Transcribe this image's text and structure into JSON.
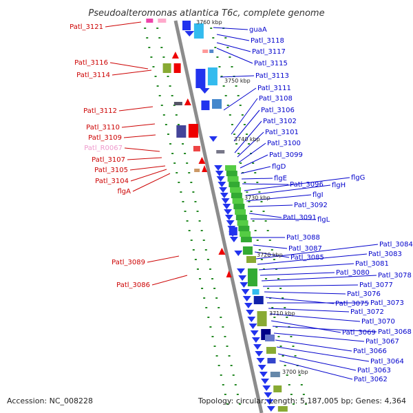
{
  "title": "Pseudoalteromonas atlantica T6c, complete genome",
  "accession": "Accession: NC_008228",
  "summary": "Topology: circular; Length: 5,187,005 bp; Genes: 4,364",
  "colors": {
    "forward_label": "#0000cc",
    "reverse_label": "#cc0000",
    "rna_label": "#ee99cc",
    "backbone": "#8c8c8c",
    "ticks": "#228822"
  },
  "kbp_marks": [
    "3760 kbp",
    "3750 kbp",
    "3740 kbp",
    "3730 kbp",
    "3720 kbp",
    "3710 kbp",
    "3700 kbp"
  ],
  "left_labels": [
    {
      "text": "Patl_3121",
      "kind": "reverse"
    },
    {
      "text": "Patl_3116",
      "kind": "reverse"
    },
    {
      "text": "Patl_3114",
      "kind": "reverse"
    },
    {
      "text": "Patl_3112",
      "kind": "reverse"
    },
    {
      "text": "Patl_3110",
      "kind": "reverse"
    },
    {
      "text": "Patl_3109",
      "kind": "reverse"
    },
    {
      "text": "Patl_R0067",
      "kind": "rna"
    },
    {
      "text": "Patl_3107",
      "kind": "reverse"
    },
    {
      "text": "Patl_3105",
      "kind": "reverse"
    },
    {
      "text": "Patl_3104",
      "kind": "reverse"
    },
    {
      "text": "flgA",
      "kind": "reverse"
    },
    {
      "text": "Patl_3089",
      "kind": "reverse"
    },
    {
      "text": "Patl_3086",
      "kind": "reverse"
    }
  ],
  "right_labels": [
    {
      "text": "guaA"
    },
    {
      "text": "Patl_3118"
    },
    {
      "text": "Patl_3117"
    },
    {
      "text": "Patl_3115"
    },
    {
      "text": "Patl_3113"
    },
    {
      "text": "Patl_3111"
    },
    {
      "text": "Patl_3108"
    },
    {
      "text": "Patl_3106"
    },
    {
      "text": "Patl_3102"
    },
    {
      "text": "Patl_3101"
    },
    {
      "text": "Patl_3100"
    },
    {
      "text": "Patl_3099"
    },
    {
      "text": "flgD"
    },
    {
      "text": "flgE"
    },
    {
      "text": "Patl_3096"
    },
    {
      "text": "flgG"
    },
    {
      "text": "flgH"
    },
    {
      "text": "flgI"
    },
    {
      "text": "Patl_3092"
    },
    {
      "text": "Patl_3091"
    },
    {
      "text": "flgL"
    },
    {
      "text": "Patl_3088"
    },
    {
      "text": "Patl_3087"
    },
    {
      "text": "Patl_3085"
    },
    {
      "text": "Patl_3084"
    },
    {
      "text": "Patl_3083"
    },
    {
      "text": "Patl_3081"
    },
    {
      "text": "Patl_3080"
    },
    {
      "text": "Patl_3078"
    },
    {
      "text": "Patl_3077"
    },
    {
      "text": "Patl_3076"
    },
    {
      "text": "Patl_3075"
    },
    {
      "text": "Patl_3073"
    },
    {
      "text": "Patl_3072"
    },
    {
      "text": "Patl_3070"
    },
    {
      "text": "Patl_3069"
    },
    {
      "text": "Patl_3068"
    },
    {
      "text": "Patl_3067"
    },
    {
      "text": "Patl_3066"
    },
    {
      "text": "Patl_3064"
    },
    {
      "text": "Patl_3063"
    },
    {
      "text": "Patl_3062"
    }
  ]
}
